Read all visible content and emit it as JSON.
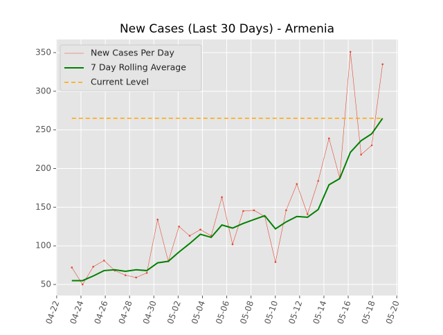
{
  "chart_data": {
    "type": "line",
    "title": "New Cases (Last 30 Days) - Armenia",
    "x": [
      1.25,
      2.13,
      3.01,
      3.9,
      4.78,
      5.66,
      6.54,
      7.42,
      8.31,
      9.19,
      10.07,
      10.95,
      11.83,
      12.72,
      13.6,
      14.48,
      15.36,
      16.24,
      17.13,
      18.01,
      18.89,
      19.77,
      20.65,
      21.53,
      22.42,
      23.3,
      24.18,
      25.06,
      25.94,
      26.83
    ],
    "series": [
      {
        "name": "New Cases Per Day",
        "color": "#e24a33",
        "style": "thin-dots",
        "values": [
          72,
          50,
          73,
          81,
          68,
          62,
          59,
          65,
          134,
          80,
          125,
          113,
          121,
          113,
          163,
          102,
          145,
          146,
          138,
          79,
          146,
          180,
          141,
          184,
          239,
          188,
          351,
          218,
          230,
          335
        ]
      },
      {
        "name": "7 Day Rolling Average",
        "color": "#008000",
        "style": "solid",
        "values": [
          55,
          55,
          61,
          68,
          69,
          67,
          69,
          68,
          78,
          80,
          92,
          103,
          115,
          111,
          127,
          123,
          129,
          134,
          139,
          122,
          131,
          138,
          137,
          147,
          179,
          187,
          221,
          236,
          245,
          265
        ]
      },
      {
        "name": "Current Level",
        "color": "#ffa500",
        "style": "dashed",
        "x": [
          1.25,
          26.83
        ],
        "values": [
          265,
          265
        ]
      }
    ],
    "xlim": [
      -0.05,
      28.1
    ],
    "xticks": [
      {
        "value": 0,
        "label": "04-22"
      },
      {
        "value": 2,
        "label": "04-24"
      },
      {
        "value": 4,
        "label": "04-26"
      },
      {
        "value": 6,
        "label": "04-28"
      },
      {
        "value": 8,
        "label": "04-30"
      },
      {
        "value": 10,
        "label": "05-02"
      },
      {
        "value": 12,
        "label": "05-04"
      },
      {
        "value": 14,
        "label": "05-06"
      },
      {
        "value": 16,
        "label": "05-08"
      },
      {
        "value": 18,
        "label": "05-10"
      },
      {
        "value": 20,
        "label": "05-12"
      },
      {
        "value": 22,
        "label": "05-14"
      },
      {
        "value": 24,
        "label": "05-16"
      },
      {
        "value": 26,
        "label": "05-18"
      },
      {
        "value": 28,
        "label": "05-20"
      }
    ],
    "ylim": [
      35.7,
      367
    ],
    "yticks": [
      50,
      100,
      150,
      200,
      250,
      300,
      350
    ],
    "grid": true,
    "legend": "upper-left"
  }
}
